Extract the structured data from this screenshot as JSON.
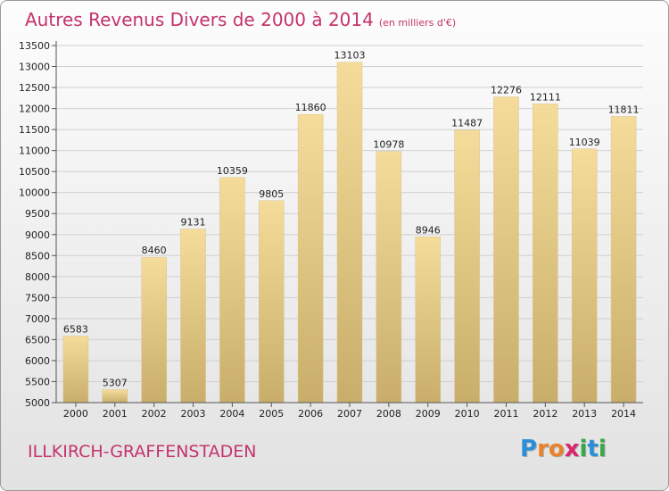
{
  "title": "Autres Revenus Divers de 2000 à 2014",
  "subtitle": "(en milliers d'€)",
  "commune": "ILLKIRCH-GRAFFENSTADEN",
  "logo": {
    "text": "Proxiti",
    "colors": [
      "#2a8fd8",
      "#e8832a",
      "#e8832a",
      "#d9256c",
      "#36a84a",
      "#2a8fd8",
      "#36a84a"
    ]
  },
  "colors": {
    "title": "#c4336b",
    "bar_light": "#f6dc9a",
    "bar_dark": "#c8ae6a"
  },
  "chart_data": {
    "type": "bar",
    "categories": [
      "2000",
      "2001",
      "2002",
      "2003",
      "2004",
      "2005",
      "2006",
      "2007",
      "2008",
      "2009",
      "2010",
      "2011",
      "2012",
      "2013",
      "2014"
    ],
    "values": [
      6583,
      5307,
      8460,
      9131,
      10359,
      9805,
      11860,
      13103,
      10978,
      8946,
      11487,
      12276,
      12111,
      11039,
      11811
    ],
    "yticks": [
      5000,
      5500,
      6000,
      6500,
      7000,
      7500,
      8000,
      8500,
      9000,
      9500,
      10000,
      10500,
      11000,
      11500,
      12000,
      12500,
      13000,
      13500
    ],
    "ylim": [
      5000,
      13500
    ],
    "grid": true
  }
}
